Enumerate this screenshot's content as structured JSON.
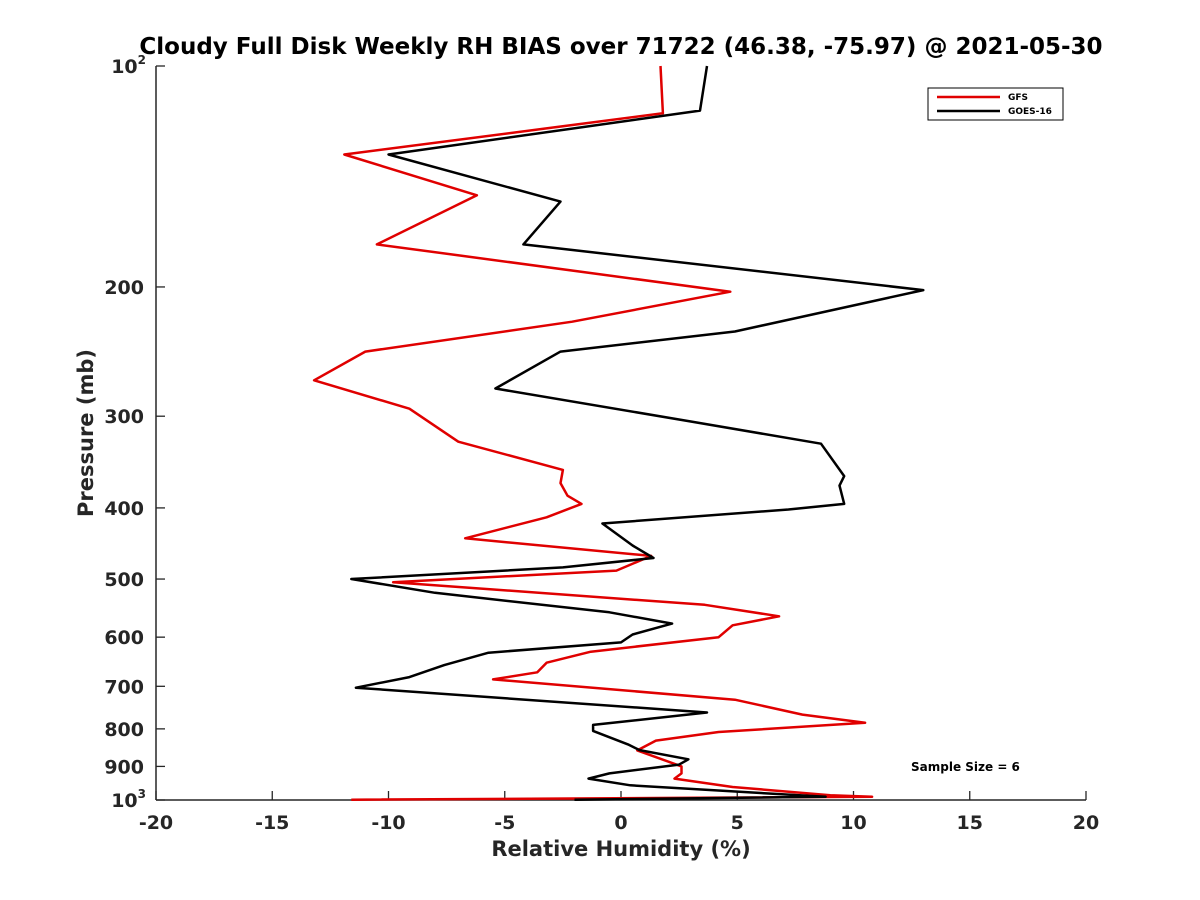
{
  "chart_data": {
    "type": "line",
    "title": "Cloudy Full Disk Weekly RH BIAS over 71722 (46.38, -75.97) @ 2021-05-30",
    "xlabel": "Relative Humidity (%)",
    "ylabel": "Pressure (mb)",
    "xlim": [
      -20,
      20
    ],
    "ylim": [
      100,
      1000
    ],
    "yscale": "log",
    "xticks": [
      -20,
      -15,
      -10,
      -5,
      0,
      5,
      10,
      15,
      20
    ],
    "xtick_labels": [
      "-20",
      "-15",
      "-10",
      "-5",
      "0",
      "5",
      "10",
      "15",
      "20"
    ],
    "yticks": [
      200,
      300,
      400,
      500,
      600,
      700,
      800,
      900
    ],
    "ytick_labels": [
      "200",
      "300",
      "400",
      "500",
      "600",
      "700",
      "800",
      "900"
    ],
    "ytick_top": {
      "base": "10",
      "exp": "2"
    },
    "ytick_bottom": {
      "base": "10",
      "exp": "3"
    },
    "legend_position": "top-right",
    "annotation": "Sample Size = 6",
    "series": [
      {
        "name": "GFS",
        "color": "#e00000",
        "x": [
          1.7,
          1.8,
          -11.9,
          -6.2,
          -10.5,
          4.7,
          -2.1,
          -11.0,
          -13.2,
          -9.1,
          -7.0,
          -2.5,
          -2.6,
          -2.3,
          -1.7,
          -3.2,
          -6.7,
          1.3,
          -0.2,
          -9.8,
          3.6,
          6.8,
          4.8,
          4.2,
          -1.3,
          -3.2,
          -3.6,
          -5.5,
          4.9,
          7.8,
          10.5,
          4.2,
          1.5,
          0.7,
          2.6,
          2.6,
          2.3,
          4.8,
          9.0,
          10.8,
          -11.6
        ],
        "y": [
          100,
          116,
          132,
          150,
          175,
          203,
          223,
          245,
          268,
          293,
          325,
          355,
          370,
          385,
          395,
          412,
          440,
          465,
          487,
          505,
          542,
          562,
          578,
          600,
          628,
          650,
          670,
          685,
          730,
          765,
          785,
          808,
          830,
          856,
          900,
          920,
          935,
          960,
          985,
          990,
          999
        ]
      },
      {
        "name": "GOES-16",
        "color": "#000000",
        "x": [
          3.7,
          3.4,
          -10.0,
          -2.6,
          -4.2,
          13.0,
          4.9,
          -2.6,
          -5.4,
          3.0,
          8.6,
          9.6,
          9.4,
          9.6,
          7.2,
          -0.8,
          0.5,
          1.4,
          -2.5,
          -11.6,
          -8.0,
          -0.5,
          2.2,
          0.5,
          0.0,
          -5.7,
          -7.6,
          -9.1,
          -11.4,
          3.7,
          -1.2,
          -1.2,
          0.3,
          0.8,
          2.9,
          2.5,
          -0.5,
          -1.4,
          0.4,
          4.0,
          8.8,
          -2.0
        ],
        "y": [
          100,
          115,
          132,
          153,
          175,
          202,
          230,
          245,
          275,
          305,
          327,
          362,
          373,
          395,
          402,
          420,
          450,
          468,
          482,
          500,
          522,
          555,
          575,
          595,
          610,
          630,
          655,
          680,
          703,
          760,
          790,
          805,
          840,
          855,
          880,
          895,
          920,
          935,
          955,
          970,
          990,
          999
        ]
      }
    ]
  }
}
